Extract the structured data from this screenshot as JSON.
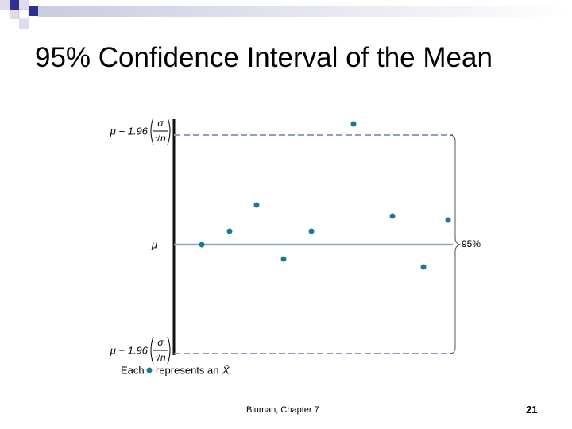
{
  "title": "95% Confidence Interval of the Mean",
  "figure": {
    "upper_label": "μ + 1.96",
    "upper_numerator": "σ",
    "upper_denominator": "√n",
    "mean_label": "μ",
    "lower_label": "μ − 1.96",
    "lower_numerator": "σ",
    "lower_denominator": "√n",
    "interval_label": "95%",
    "legend_prefix": "Each",
    "legend_suffix": "represents an",
    "legend_symbol": "X̄."
  },
  "footer": {
    "source": "Bluman, Chapter 7",
    "page": "21"
  }
}
